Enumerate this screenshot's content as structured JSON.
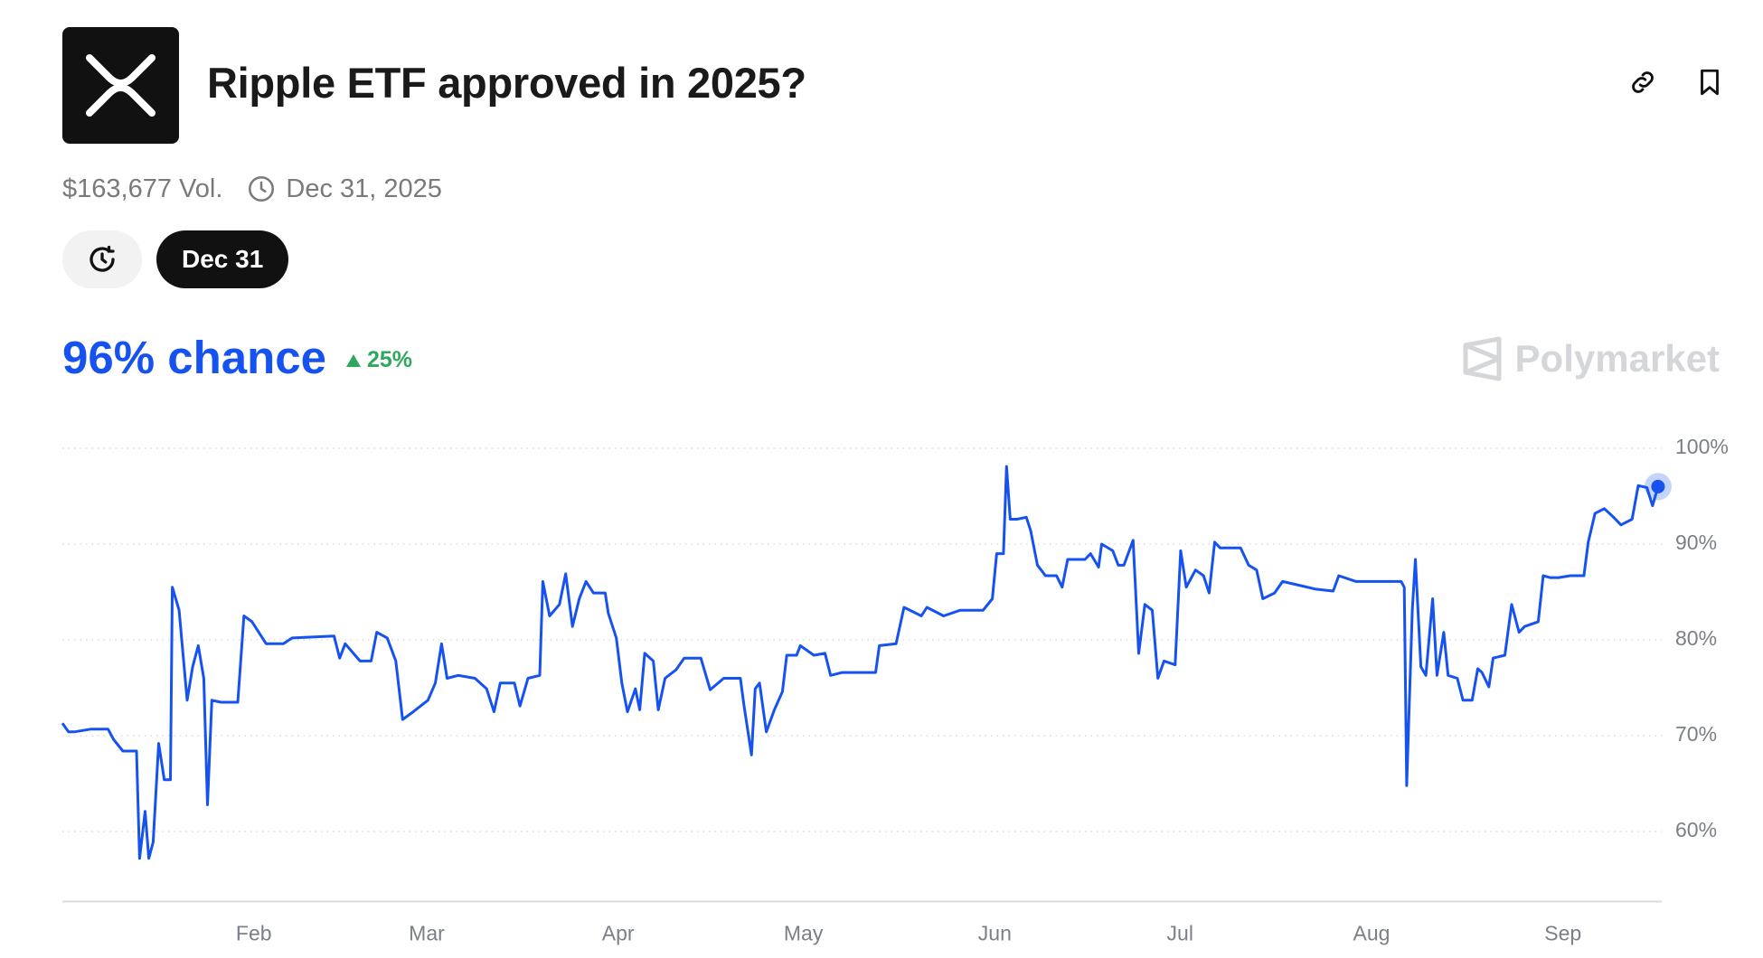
{
  "header": {
    "title": "Ripple ETF approved in 2025?",
    "volume": "$163,677 Vol.",
    "end_date": "Dec 31, 2025"
  },
  "date_tab": "Dec 31",
  "summary": {
    "chance": "96% chance",
    "change": "25%"
  },
  "brand": "Polymarket",
  "chart_data": {
    "type": "line",
    "color": "#1652f0",
    "x": [
      0,
      1.0,
      1.9,
      4.7,
      7.4,
      8.3,
      9.8,
      12.0,
      12.5,
      13.4,
      14.0,
      14.7,
      15.6,
      16.5,
      17.5,
      17.8,
      18.9,
      20.2,
      21.1,
      22.0,
      22.9,
      23.5,
      24.2,
      25.7,
      28.4,
      29.4,
      30.7,
      33.0,
      35.8,
      37.2,
      44.0,
      44.9,
      45.8,
      48.2,
      50.0,
      50.9,
      52.6,
      54.0,
      55.1,
      56.8,
      59.2,
      60.4,
      61.4,
      62.3,
      64.1,
      66.8,
      68.7,
      69.9,
      70.9,
      73.2,
      74.1,
      75.4,
      77.3,
      77.8,
      78.9,
      80.5,
      81.5,
      82.6,
      83.7,
      84.8,
      86.0,
      87.9,
      88.4,
      89.7,
      90.6,
      91.5,
      92.8,
      93.5,
      94.3,
      95.7,
      96.5,
      97.6,
      99.4,
      100.7,
      103.4,
      104.9,
      107.1,
      109.8,
      110.4,
      111.6,
      112.2,
      112.9,
      114.0,
      115.3,
      116.6,
      117.3,
      118.9,
      119.5,
      121.7,
      123.5,
      124.4,
      126.3,
      131.7,
      132.3,
      135.0,
      136.3,
      139.1,
      140.0,
      142.7,
      145.4,
      149.1,
      150.6,
      151.3,
      152.4,
      152.9,
      153.5,
      154.6,
      156.1,
      156.8,
      157.9,
      159.2,
      161.0,
      161.9,
      162.8,
      165.6,
      166.5,
      167.8,
      168.3,
      170.1,
      171.0,
      171.9,
      173.4,
      174.3,
      175.3,
      176.5,
      177.4,
      178.4,
      180.2,
      181.1,
      182.0,
      183.5,
      184.8,
      185.7,
      186.6,
      187.5,
      190.8,
      192.1,
      193.4,
      194.4,
      196.3,
      197.6,
      200.3,
      203.0,
      205.8,
      206.7,
      209.5,
      212.2,
      216.8,
      217.3,
      217.7,
      218.6,
      219.1,
      220.0,
      220.8,
      221.9,
      222.6,
      223.7,
      224.4,
      225.9,
      226.8,
      228.3,
      229.2,
      229.9,
      231.0,
      231.7,
      233.6,
      234.7,
      235.9,
      236.8,
      239.0,
      239.8,
      240.9,
      242.3,
      244.2,
      246.4,
      247.1,
      248.2,
      249.7,
      251.2,
      252.4,
      254.2,
      255.2,
      256.6,
      257.5,
      258.4
    ],
    "values": [
      71.3,
      70.4,
      70.4,
      70.7,
      70.7,
      69.6,
      68.4,
      68.4,
      57.2,
      62.1,
      57.2,
      58.9,
      69.2,
      65.4,
      65.4,
      85.5,
      83.1,
      73.7,
      77.2,
      79.4,
      76.0,
      62.8,
      73.7,
      73.5,
      73.5,
      82.5,
      81.9,
      79.6,
      79.6,
      80.2,
      80.4,
      78.1,
      79.6,
      77.8,
      77.8,
      80.8,
      80.2,
      77.8,
      71.7,
      72.5,
      73.7,
      75.5,
      79.6,
      76.0,
      76.3,
      76.0,
      74.9,
      72.5,
      75.5,
      75.5,
      73.1,
      76.0,
      76.3,
      86.1,
      82.5,
      83.7,
      86.9,
      81.4,
      84.3,
      86.1,
      84.9,
      84.9,
      82.8,
      80.2,
      75.5,
      72.5,
      74.9,
      72.7,
      78.6,
      77.8,
      72.7,
      76.0,
      76.9,
      78.1,
      78.1,
      74.8,
      76.0,
      76.0,
      73.1,
      68.0,
      74.9,
      75.5,
      70.4,
      72.7,
      74.6,
      78.4,
      78.4,
      79.4,
      78.4,
      78.6,
      76.3,
      76.6,
      76.6,
      79.4,
      79.6,
      83.4,
      82.5,
      83.4,
      82.5,
      83.1,
      83.1,
      84.3,
      89.0,
      89.0,
      98.1,
      92.6,
      92.6,
      92.8,
      91.4,
      87.8,
      86.7,
      86.7,
      85.5,
      88.4,
      88.4,
      89.0,
      87.6,
      90.0,
      89.3,
      87.8,
      87.8,
      90.4,
      78.6,
      83.7,
      83.1,
      76.0,
      77.8,
      77.4,
      89.3,
      85.5,
      87.3,
      86.7,
      84.9,
      90.2,
      89.6,
      89.6,
      87.8,
      87.3,
      84.3,
      84.9,
      86.1,
      85.7,
      85.3,
      85.1,
      86.7,
      86.1,
      86.1,
      86.1,
      85.5,
      64.8,
      83.1,
      88.4,
      77.2,
      76.3,
      84.3,
      76.3,
      80.8,
      76.3,
      76.0,
      73.7,
      73.7,
      77.0,
      76.6,
      75.1,
      78.1,
      78.4,
      83.7,
      80.8,
      81.4,
      81.9,
      86.7,
      86.5,
      86.5,
      86.7,
      86.7,
      90.2,
      93.2,
      93.7,
      92.8,
      92.0,
      92.6,
      96.1,
      95.9,
      94.0,
      96.0
    ],
    "xlim": [
      0,
      259
    ],
    "xticks": [
      {
        "value": 31,
        "label": "Feb"
      },
      {
        "value": 59,
        "label": "Mar"
      },
      {
        "value": 90,
        "label": "Apr"
      },
      {
        "value": 120,
        "label": "May"
      },
      {
        "value": 151,
        "label": "Jun"
      },
      {
        "value": 181,
        "label": "Jul"
      },
      {
        "value": 212,
        "label": "Aug"
      },
      {
        "value": 243,
        "label": "Sep"
      }
    ],
    "ylim": [
      52.7,
      100
    ],
    "yticks": [
      {
        "value": 60,
        "label": "60%"
      },
      {
        "value": 70,
        "label": "70%"
      },
      {
        "value": 80,
        "label": "80%"
      },
      {
        "value": 90,
        "label": "90%"
      },
      {
        "value": 100,
        "label": "100%"
      }
    ],
    "grid": true
  }
}
